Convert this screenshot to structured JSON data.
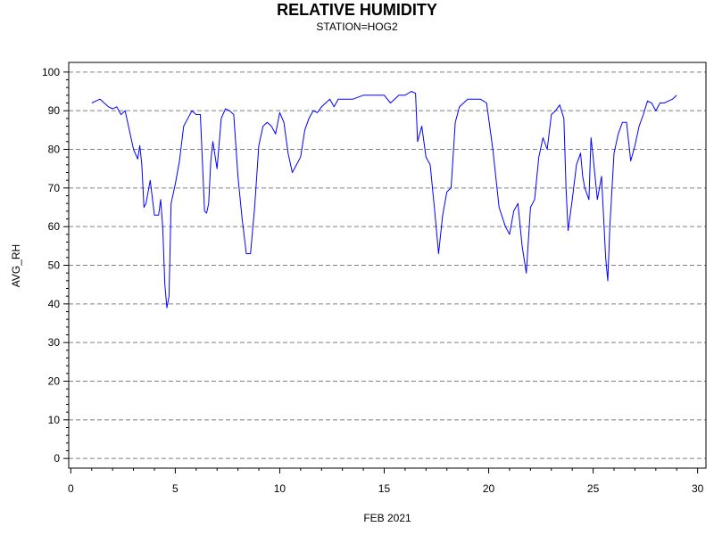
{
  "title": "RELATIVE HUMIDITY",
  "subtitle": "STATION=HOG2",
  "chart_data": {
    "type": "line",
    "title": "RELATIVE HUMIDITY",
    "subtitle": "STATION=HOG2",
    "xlabel": "FEB 2021",
    "ylabel": "AVG_RH",
    "xlim": [
      -0.1,
      30.4
    ],
    "ylim": [
      -2.5,
      102.5
    ],
    "x_ticks": [
      0,
      5,
      10,
      15,
      20,
      25,
      30
    ],
    "y_ticks": [
      0,
      10,
      20,
      30,
      40,
      50,
      60,
      70,
      80,
      90,
      100
    ],
    "grid": "horizontal dashed",
    "series": [
      {
        "color": "#0000ff",
        "x": [
          1.0,
          1.2,
          1.4,
          1.6,
          1.8,
          2.0,
          2.2,
          2.4,
          2.6,
          2.8,
          3.0,
          3.2,
          3.3,
          3.4,
          3.5,
          3.6,
          3.8,
          4.0,
          4.2,
          4.3,
          4.4,
          4.5,
          4.6,
          4.7,
          4.8,
          5.0,
          5.2,
          5.4,
          5.6,
          5.8,
          6.0,
          6.2,
          6.4,
          6.5,
          6.6,
          6.7,
          6.8,
          7.0,
          7.2,
          7.4,
          7.6,
          7.8,
          8.0,
          8.2,
          8.4,
          8.6,
          8.8,
          9.0,
          9.2,
          9.4,
          9.6,
          9.8,
          10.0,
          10.2,
          10.4,
          10.6,
          10.8,
          11.0,
          11.2,
          11.4,
          11.6,
          11.8,
          12.0,
          12.2,
          12.4,
          12.6,
          12.8,
          13.0,
          13.5,
          14.0,
          14.5,
          15.0,
          15.3,
          15.5,
          15.7,
          16.0,
          16.3,
          16.5,
          16.6,
          16.8,
          17.0,
          17.2,
          17.4,
          17.6,
          17.8,
          18.0,
          18.2,
          18.4,
          18.6,
          18.8,
          19.0,
          19.3,
          19.6,
          19.9,
          20.2,
          20.5,
          20.8,
          21.0,
          21.2,
          21.4,
          21.6,
          21.8,
          22.0,
          22.2,
          22.4,
          22.6,
          22.8,
          23.0,
          23.2,
          23.4,
          23.6,
          23.7,
          23.8,
          24.0,
          24.2,
          24.4,
          24.5,
          24.6,
          24.8,
          24.9,
          25.0,
          25.2,
          25.4,
          25.6,
          25.7,
          25.8,
          26.0,
          26.2,
          26.4,
          26.6,
          26.8,
          27.0,
          27.2,
          27.4,
          27.6,
          27.8,
          28.0,
          28.2,
          28.4,
          28.6,
          28.8,
          29.0
        ],
        "y": [
          92,
          92.5,
          93,
          92,
          91,
          90.5,
          91,
          89,
          90,
          85,
          80,
          77.5,
          81,
          76,
          65,
          66,
          72,
          63,
          63,
          67,
          60,
          45,
          39,
          42,
          66,
          71,
          77,
          86,
          88,
          90,
          89,
          89,
          64,
          63.5,
          66,
          77,
          82,
          75,
          88,
          90.5,
          90,
          89,
          73,
          62,
          53,
          53,
          65,
          81,
          86,
          87,
          86,
          84,
          89.5,
          87,
          79,
          74,
          76,
          78,
          85,
          88,
          90,
          89.5,
          91,
          92,
          93,
          91,
          93,
          93,
          93,
          94,
          94,
          94,
          92,
          93,
          94,
          94,
          95,
          94.5,
          82,
          86,
          78,
          76,
          65,
          53,
          63,
          69,
          70,
          87,
          91,
          92,
          93,
          93,
          93,
          92,
          80,
          65,
          60,
          58,
          64,
          66,
          55,
          48,
          65,
          67,
          78,
          83,
          80,
          89,
          90,
          91.5,
          88,
          70,
          59,
          67,
          76,
          79,
          73,
          70,
          67,
          83,
          78,
          67,
          73,
          52,
          46,
          60,
          79,
          84,
          87,
          87,
          77,
          81,
          86,
          89,
          92.5,
          92,
          90,
          92,
          92,
          92.5,
          93,
          94
        ]
      }
    ]
  }
}
